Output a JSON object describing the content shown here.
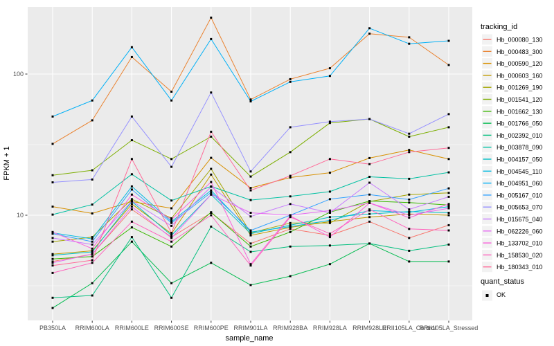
{
  "chart_data": {
    "type": "line",
    "title": "",
    "xlabel": "sample_name",
    "ylabel": "FPKM + 1",
    "y_scale": "log10",
    "ylim": [
      1.8,
      300
    ],
    "y_tick_values": [
      100,
      10
    ],
    "y_tick_labels": [
      "100",
      "10"
    ],
    "y_minor_values": [
      31.62,
      3.162
    ],
    "grid": true,
    "legend_position": "right",
    "panel_bg": "#EBEBEB",
    "grid_color": "#FFFFFF",
    "tick_color": "#333333",
    "tick_label_color": "#4D4D4D",
    "marker": {
      "shape": "square",
      "color": "#000000",
      "size": 3
    },
    "categories": [
      "PB350LA",
      "RRIM600LA",
      "RRIM600LE",
      "RRIM600SE",
      "RRIM600PE",
      "RRIM901LA",
      "RRIM928BA",
      "RRIM928LA",
      "RRIM928LE",
      "RRII105LA_Control",
      "RRII105LA_Stressed"
    ],
    "series": [
      {
        "name": "Hb_000080_130",
        "color": "#F8766D",
        "values": [
          4.7,
          5.3,
          11,
          7,
          10.4,
          6.3,
          8,
          7.2,
          9,
          6.9,
          8.5
        ]
      },
      {
        "name": "Hb_000483_300",
        "color": "#EA8331",
        "values": [
          32,
          47,
          132,
          75,
          251,
          66,
          92,
          110,
          193,
          182,
          116
        ]
      },
      {
        "name": "Hb_000590_120",
        "color": "#D89000",
        "values": [
          11.5,
          10.3,
          12.5,
          11.2,
          25.5,
          15.6,
          18.5,
          20,
          25.4,
          29,
          25
        ]
      },
      {
        "name": "Hb_000603_160",
        "color": "#C09B00",
        "values": [
          5.3,
          5.6,
          12,
          7.4,
          19.4,
          7.2,
          8.2,
          9,
          9.7,
          10.2,
          10
        ]
      },
      {
        "name": "Hb_001269_190",
        "color": "#A3A500",
        "values": [
          6.5,
          7,
          13,
          9.5,
          21.3,
          7.5,
          8.8,
          8.8,
          12.5,
          14,
          14.4
        ]
      },
      {
        "name": "Hb_001541_120",
        "color": "#7CAE00",
        "values": [
          19.2,
          20.8,
          34,
          25,
          36,
          18.8,
          28,
          45,
          48,
          36,
          42
        ]
      },
      {
        "name": "Hb_001662_130",
        "color": "#39B600",
        "values": [
          4.9,
          5.1,
          8.2,
          6,
          10.5,
          6,
          7.6,
          10.5,
          12.6,
          12.3,
          11.8
        ]
      },
      {
        "name": "Hb_001766_050",
        "color": "#00BB4E",
        "values": [
          2.2,
          3.3,
          6.5,
          3.3,
          4.6,
          3.2,
          3.7,
          4.5,
          6.3,
          4.7,
          4.7
        ]
      },
      {
        "name": "Hb_002392_010",
        "color": "#00BF7D",
        "values": [
          2.6,
          2.7,
          7,
          2.6,
          8.3,
          5.5,
          6,
          6.1,
          6.3,
          5.6,
          6.2
        ]
      },
      {
        "name": "Hb_003878_090",
        "color": "#00C1A3",
        "values": [
          10.1,
          11.9,
          19.5,
          12.7,
          16,
          12.8,
          13.6,
          14.7,
          18.7,
          18.1,
          20.1
        ]
      },
      {
        "name": "Hb_004157_050",
        "color": "#00BFC4",
        "values": [
          5.2,
          5.5,
          12.5,
          7.2,
          14,
          7.4,
          8.5,
          9.7,
          10.2,
          10.6,
          10.4
        ]
      },
      {
        "name": "Hb_004545_110",
        "color": "#00BAE0",
        "values": [
          7.5,
          6.8,
          16,
          9,
          15,
          7.6,
          8.3,
          9.2,
          10.8,
          10.5,
          11.5
        ]
      },
      {
        "name": "Hb_004951_060",
        "color": "#00B0F6",
        "values": [
          50,
          65,
          155,
          65,
          177,
          64,
          88,
          97,
          211,
          164,
          172
        ]
      },
      {
        "name": "Hb_005167_010",
        "color": "#35A2FF",
        "values": [
          7.4,
          6.5,
          15.2,
          8.8,
          14.5,
          7.8,
          10,
          13,
          14,
          12.9,
          15.5
        ]
      },
      {
        "name": "Hb_005653_070",
        "color": "#9590FF",
        "values": [
          17.1,
          17.9,
          50,
          22,
          74,
          20.4,
          42,
          46,
          48,
          37.8,
          52
        ]
      },
      {
        "name": "Hb_015675_040",
        "color": "#C77CFF",
        "values": [
          6.9,
          6.2,
          12.6,
          8.4,
          15.9,
          9.8,
          12,
          10.4,
          17,
          11,
          13.5
        ]
      },
      {
        "name": "Hb_062226_060",
        "color": "#E76BF3",
        "values": [
          4.6,
          5.3,
          11.5,
          6.9,
          14,
          10.4,
          10,
          10.8,
          12.2,
          10,
          11.2
        ]
      },
      {
        "name": "Hb_133702_010",
        "color": "#FA62DB",
        "values": [
          7.6,
          5.8,
          14,
          9.3,
          17.2,
          4.5,
          9.9,
          7,
          12.2,
          9.6,
          12
        ]
      },
      {
        "name": "Hb_158530_020",
        "color": "#FF62BC",
        "values": [
          3.9,
          4.6,
          9,
          6.5,
          10,
          4.4,
          9.7,
          7.4,
          11,
          8,
          7.8
        ]
      },
      {
        "name": "Hb_180343_010",
        "color": "#FF6A98",
        "values": [
          4.4,
          4.8,
          25,
          7.5,
          39,
          15,
          19,
          25,
          23,
          28,
          30
        ]
      }
    ]
  },
  "legend": {
    "tracking_title": "tracking_id",
    "quant_title": "quant_status",
    "quant_ok_label": "OK",
    "key_bg": "#F2F2F2"
  }
}
